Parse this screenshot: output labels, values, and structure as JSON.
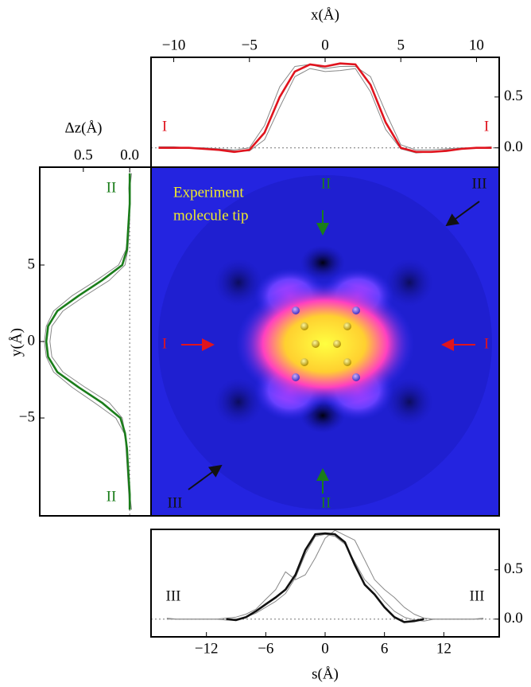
{
  "chart_data": [
    {
      "type": "line",
      "xlabel": "x(Å)",
      "x": [
        -11,
        -10,
        -9,
        -8,
        -7,
        -6,
        -5,
        -4,
        -3,
        -2,
        -1,
        0,
        1,
        2,
        3,
        4,
        5,
        6,
        7,
        8,
        9,
        10,
        11
      ],
      "xlim": [
        -11.5,
        11.5
      ],
      "xticks": [
        {
          "value": -10,
          "label": "−10"
        },
        {
          "value": -5,
          "label": "−5"
        },
        0,
        5,
        10
      ],
      "ylim": [
        -0.19,
        0.89
      ],
      "yticks": [
        {
          "value": 0,
          "label": "0.0"
        },
        {
          "value": 0.5,
          "label": "0.5"
        }
      ],
      "reference_line": 0,
      "annotations": [
        "I",
        "I"
      ],
      "series": [
        {
          "color": "#888888",
          "values": [
            0,
            0,
            0,
            0,
            -0.01,
            -0.02,
            0.0,
            0.22,
            0.6,
            0.8,
            0.82,
            0.78,
            0.8,
            0.8,
            0.7,
            0.35,
            0.03,
            -0.02,
            -0.02,
            -0.01,
            0,
            0,
            0.01
          ]
        },
        {
          "color": "#888888",
          "values": [
            0.01,
            0.01,
            0,
            0,
            -0.01,
            -0.03,
            -0.03,
            0.08,
            0.4,
            0.7,
            0.78,
            0.75,
            0.76,
            0.78,
            0.55,
            0.18,
            -0.01,
            -0.05,
            -0.04,
            -0.02,
            -0.01,
            0,
            0
          ]
        },
        {
          "color": "#e0141e",
          "values": [
            0,
            0,
            0,
            -0.01,
            -0.02,
            -0.04,
            -0.02,
            0.15,
            0.5,
            0.75,
            0.82,
            0.8,
            0.83,
            0.82,
            0.62,
            0.25,
            0,
            -0.04,
            -0.04,
            -0.03,
            -0.01,
            0,
            0
          ]
        }
      ]
    },
    {
      "type": "line",
      "orientation": "vertical",
      "xlabel": "Δz(Å)",
      "ylabel": "y(Å)",
      "y": [
        -11,
        -10,
        -9,
        -8,
        -7,
        -6,
        -5,
        -4,
        -3,
        -2,
        -1,
        0,
        1,
        2,
        3,
        4,
        5,
        6,
        7,
        8,
        9,
        10,
        11
      ],
      "xlim": [
        0.97,
        -0.23
      ],
      "xticks": [
        {
          "value": 0.5,
          "label": "0.5"
        },
        {
          "value": 0,
          "label": "0.0"
        }
      ],
      "ylim": [
        -11.4,
        11.4
      ],
      "yticks": [
        5,
        0,
        {
          "value": -5,
          "label": "−5"
        }
      ],
      "reference_line": 0,
      "annotations": [
        "II",
        "II"
      ],
      "series": [
        {
          "color": "#888888",
          "values": [
            -0.02,
            0,
            0.01,
            0.02,
            0.03,
            0.06,
            0.15,
            0.38,
            0.62,
            0.82,
            0.9,
            0.92,
            0.9,
            0.82,
            0.62,
            0.36,
            0.12,
            0.04,
            0.02,
            0.01,
            0,
            0,
            -0.02
          ]
        },
        {
          "color": "#888888",
          "values": [
            0,
            0.01,
            0.02,
            0.03,
            0.04,
            0.05,
            0.08,
            0.22,
            0.48,
            0.72,
            0.84,
            0.86,
            0.84,
            0.72,
            0.48,
            0.22,
            0.05,
            0.02,
            0.01,
            0,
            0,
            0.01,
            0
          ]
        },
        {
          "color": "#1a7d1a",
          "values": [
            0,
            0,
            0.01,
            0.02,
            0.03,
            0.05,
            0.1,
            0.3,
            0.55,
            0.78,
            0.88,
            0.9,
            0.88,
            0.78,
            0.55,
            0.3,
            0.08,
            0.03,
            0.02,
            0.01,
            0,
            0,
            0
          ]
        }
      ]
    },
    {
      "type": "line",
      "xlabel": "s(Å)",
      "x": [
        -16,
        -15,
        -14,
        -13,
        -12,
        -11,
        -10,
        -9,
        -8,
        -7,
        -6,
        -5,
        -4,
        -3,
        -2,
        -1,
        0,
        1,
        2,
        3,
        4,
        5,
        6,
        7,
        8,
        9,
        10,
        11,
        12,
        13,
        14,
        15,
        16
      ],
      "xlim": [
        -17.6,
        17.6
      ],
      "xticks": [
        {
          "value": -12,
          "label": "−12"
        },
        {
          "value": -6,
          "label": "−6"
        },
        0,
        6,
        12
      ],
      "ylim": [
        -0.18,
        0.91
      ],
      "yticks": [
        {
          "value": 0,
          "label": "0.0"
        },
        {
          "value": 0.5,
          "label": "0.5"
        }
      ],
      "reference_line": 0,
      "annotations": [
        "III",
        "III"
      ],
      "series": [
        {
          "color": "#888888",
          "values": [
            0,
            0,
            0,
            0,
            0,
            0,
            0.01,
            0.02,
            0.05,
            0.1,
            0.2,
            0.3,
            0.48,
            0.4,
            0.45,
            0.62,
            0.82,
            0.9,
            0.85,
            0.8,
            0.6,
            0.4,
            0.3,
            0.22,
            0.12,
            0.05,
            0.01,
            0,
            0,
            0,
            0,
            0,
            0
          ]
        },
        {
          "color": "#888888",
          "values": [
            0.01,
            0,
            0,
            0,
            0,
            0,
            -0.01,
            0,
            0.02,
            0.06,
            0.12,
            0.18,
            0.26,
            0.42,
            0.66,
            0.84,
            0.86,
            0.84,
            0.76,
            0.58,
            0.4,
            0.3,
            0.18,
            0.08,
            0.02,
            -0.01,
            -0.02,
            0,
            0,
            0,
            0,
            0,
            0.01
          ]
        },
        {
          "color": "#111111",
          "values": [
            null,
            null,
            null,
            null,
            null,
            null,
            0,
            -0.01,
            0.02,
            0.08,
            0.15,
            0.22,
            0.3,
            0.45,
            0.7,
            0.86,
            0.87,
            0.86,
            0.78,
            0.55,
            0.35,
            0.25,
            0.12,
            0.02,
            -0.03,
            -0.02,
            0,
            null,
            null,
            null,
            null,
            null,
            null
          ]
        }
      ]
    }
  ],
  "image": {
    "label": [
      "Experiment",
      "molecule tip"
    ],
    "markers": [
      "I",
      "I",
      "II",
      "II",
      "III",
      "III"
    ]
  }
}
